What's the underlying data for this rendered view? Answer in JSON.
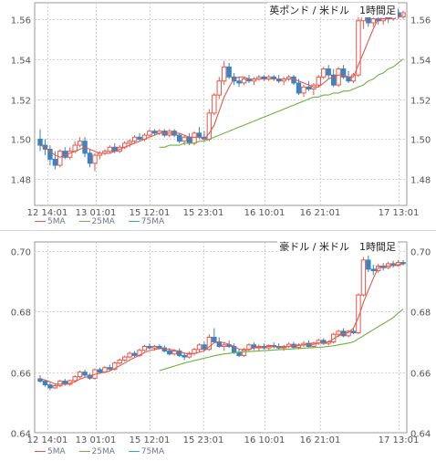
{
  "chart_data": [
    {
      "type": "candlestick",
      "title": "英ポンド / 米ドル　1時間足",
      "ylim": [
        1.467,
        1.568
      ],
      "y_ticks": [
        "1.56",
        "1.54",
        "1.52",
        "1.50",
        "1.48"
      ],
      "x_ticks": [
        "12 14:01",
        "13 01:01",
        "15 12:01",
        "15 23:01",
        "16 10:01",
        "16 21:01",
        "17 13:01"
      ],
      "legend": [
        "5MA",
        "25MA",
        "75MA"
      ],
      "colors": {
        "up": "#e8574a",
        "down": "#3c83c2",
        "ma5": "#e05a4a",
        "ma25": "#6cb23e",
        "ma75": "#3aa3d6",
        "grid": "#d2d2d2"
      },
      "candles": [
        [
          1.5,
          1.505,
          1.494,
          1.497
        ],
        [
          1.497,
          1.5,
          1.492,
          1.495
        ],
        [
          1.495,
          1.497,
          1.487,
          1.49
        ],
        [
          1.49,
          1.494,
          1.485,
          1.487
        ],
        [
          1.487,
          1.495,
          1.486,
          1.494
        ],
        [
          1.494,
          1.496,
          1.49,
          1.491
        ],
        [
          1.491,
          1.496,
          1.49,
          1.494
        ],
        [
          1.494,
          1.499,
          1.493,
          1.497
        ],
        [
          1.497,
          1.501,
          1.496,
          1.499
        ],
        [
          1.499,
          1.501,
          1.491,
          1.493
        ],
        [
          1.493,
          1.495,
          1.486,
          1.488
        ],
        [
          1.488,
          1.493,
          1.484,
          1.492
        ],
        [
          1.492,
          1.494,
          1.49,
          1.493
        ],
        [
          1.493,
          1.495,
          1.492,
          1.494
        ],
        [
          1.494,
          1.497,
          1.493,
          1.496
        ],
        [
          1.496,
          1.498,
          1.493,
          1.494
        ],
        [
          1.494,
          1.497,
          1.493,
          1.496
        ],
        [
          1.496,
          1.499,
          1.495,
          1.498
        ],
        [
          1.498,
          1.5,
          1.496,
          1.499
        ],
        [
          1.499,
          1.502,
          1.498,
          1.501
        ],
        [
          1.501,
          1.503,
          1.499,
          1.5
        ],
        [
          1.5,
          1.503,
          1.499,
          1.502
        ],
        [
          1.502,
          1.505,
          1.501,
          1.504
        ],
        [
          1.504,
          1.505,
          1.502,
          1.503
        ],
        [
          1.503,
          1.505,
          1.502,
          1.504
        ],
        [
          1.504,
          1.505,
          1.501,
          1.502
        ],
        [
          1.502,
          1.505,
          1.501,
          1.504
        ],
        [
          1.504,
          1.505,
          1.501,
          1.502
        ],
        [
          1.502,
          1.503,
          1.498,
          1.499
        ],
        [
          1.499,
          1.502,
          1.497,
          1.501
        ],
        [
          1.501,
          1.503,
          1.497,
          1.498
        ],
        [
          1.498,
          1.504,
          1.497,
          1.503
        ],
        [
          1.503,
          1.506,
          1.5,
          1.501
        ],
        [
          1.501,
          1.504,
          1.499,
          1.5
        ],
        [
          1.5,
          1.515,
          1.499,
          1.513
        ],
        [
          1.513,
          1.523,
          1.512,
          1.522
        ],
        [
          1.522,
          1.531,
          1.52,
          1.529
        ],
        [
          1.529,
          1.539,
          1.527,
          1.536
        ],
        [
          1.536,
          1.538,
          1.53,
          1.531
        ],
        [
          1.531,
          1.533,
          1.527,
          1.529
        ],
        [
          1.529,
          1.531,
          1.526,
          1.528
        ],
        [
          1.528,
          1.531,
          1.527,
          1.53
        ],
        [
          1.53,
          1.532,
          1.528,
          1.529
        ],
        [
          1.529,
          1.531,
          1.527,
          1.53
        ],
        [
          1.53,
          1.532,
          1.529,
          1.531
        ],
        [
          1.531,
          1.532,
          1.529,
          1.53
        ],
        [
          1.53,
          1.532,
          1.529,
          1.531
        ],
        [
          1.531,
          1.532,
          1.529,
          1.53
        ],
        [
          1.53,
          1.532,
          1.528,
          1.529
        ],
        [
          1.529,
          1.531,
          1.527,
          1.53
        ],
        [
          1.53,
          1.532,
          1.529,
          1.531
        ],
        [
          1.531,
          1.532,
          1.527,
          1.528
        ],
        [
          1.528,
          1.53,
          1.522,
          1.523
        ],
        [
          1.523,
          1.527,
          1.521,
          1.526
        ],
        [
          1.526,
          1.529,
          1.524,
          1.525
        ],
        [
          1.525,
          1.528,
          1.522,
          1.527
        ],
        [
          1.527,
          1.532,
          1.526,
          1.531
        ],
        [
          1.531,
          1.536,
          1.53,
          1.535
        ],
        [
          1.535,
          1.537,
          1.53,
          1.532
        ],
        [
          1.532,
          1.535,
          1.526,
          1.527
        ],
        [
          1.527,
          1.536,
          1.526,
          1.535
        ],
        [
          1.535,
          1.537,
          1.53,
          1.531
        ],
        [
          1.531,
          1.534,
          1.528,
          1.529
        ],
        [
          1.529,
          1.533,
          1.528,
          1.532
        ],
        [
          1.532,
          1.561,
          1.531,
          1.559
        ],
        [
          1.559,
          1.566,
          1.555,
          1.564
        ],
        [
          1.564,
          1.566,
          1.556,
          1.558
        ],
        [
          1.558,
          1.562,
          1.556,
          1.56
        ],
        [
          1.56,
          1.563,
          1.557,
          1.559
        ],
        [
          1.559,
          1.562,
          1.557,
          1.561
        ],
        [
          1.561,
          1.563,
          1.558,
          1.56
        ],
        [
          1.56,
          1.564,
          1.559,
          1.563
        ],
        [
          1.563,
          1.565,
          1.56,
          1.561
        ],
        [
          1.561,
          1.564,
          1.56,
          1.563
        ]
      ],
      "ma5": [
        1.497,
        1.496,
        1.494,
        1.492,
        1.491,
        1.492,
        1.493,
        1.494,
        1.495,
        1.496,
        1.495,
        1.494,
        1.493,
        1.493,
        1.493,
        1.494,
        1.495,
        1.496,
        1.497,
        1.498,
        1.499,
        1.5,
        1.501,
        1.502,
        1.503,
        1.503,
        1.503,
        1.503,
        1.503,
        1.502,
        1.501,
        1.501,
        1.501,
        1.5,
        1.503,
        1.507,
        1.514,
        1.521,
        1.526,
        1.53,
        1.531,
        1.531,
        1.53,
        1.53,
        1.53,
        1.53,
        1.53,
        1.53,
        1.53,
        1.53,
        1.53,
        1.53,
        1.529,
        1.528,
        1.527,
        1.526,
        1.526,
        1.528,
        1.53,
        1.531,
        1.532,
        1.532,
        1.531,
        1.531,
        1.537,
        1.543,
        1.549,
        1.555,
        1.56,
        1.56,
        1.56,
        1.561,
        1.561,
        1.562
      ],
      "ma25": [
        null,
        null,
        null,
        null,
        null,
        null,
        null,
        null,
        null,
        null,
        null,
        null,
        null,
        null,
        null,
        null,
        null,
        null,
        null,
        null,
        null,
        null,
        null,
        null,
        1.496,
        1.496,
        1.497,
        1.497,
        1.497,
        1.498,
        1.498,
        1.498,
        1.499,
        1.499,
        1.5,
        1.501,
        1.502,
        1.503,
        1.504,
        1.505,
        1.506,
        1.507,
        1.508,
        1.509,
        1.51,
        1.511,
        1.512,
        1.513,
        1.514,
        1.515,
        1.516,
        1.517,
        1.518,
        1.519,
        1.52,
        1.521,
        1.521,
        1.522,
        1.522,
        1.523,
        1.523,
        1.524,
        1.524,
        1.525,
        1.526,
        1.527,
        1.529,
        1.53,
        1.532,
        1.533,
        1.535,
        1.536,
        1.538,
        1.54
      ]
    },
    {
      "type": "candlestick",
      "title": "豪ドル / 米ドル　1時間足",
      "ylim": [
        0.64,
        0.703
      ],
      "y_ticks": [
        "0.70",
        "0.68",
        "0.66",
        "0.64"
      ],
      "x_ticks": [
        "12 14:01",
        "13 01:01",
        "15 12:01",
        "15 23:01",
        "16 10:01",
        "16 21:01",
        "17 13:01"
      ],
      "legend": [
        "5MA",
        "25MA",
        "75MA"
      ],
      "colors": {
        "up": "#e8574a",
        "down": "#3c83c2",
        "ma5": "#e05a4a",
        "ma25": "#6cb23e",
        "ma75": "#3aa3d6",
        "grid": "#d2d2d2"
      },
      "candles": [
        [
          0.6578,
          0.659,
          0.6565,
          0.657
        ],
        [
          0.657,
          0.6575,
          0.6552,
          0.6558
        ],
        [
          0.6558,
          0.6565,
          0.654,
          0.6548
        ],
        [
          0.6548,
          0.656,
          0.6545,
          0.6555
        ],
        [
          0.6555,
          0.6575,
          0.655,
          0.657
        ],
        [
          0.657,
          0.6578,
          0.6555,
          0.656
        ],
        [
          0.656,
          0.6575,
          0.6555,
          0.6572
        ],
        [
          0.6572,
          0.659,
          0.6565,
          0.6585
        ],
        [
          0.6585,
          0.6605,
          0.658,
          0.66
        ],
        [
          0.66,
          0.6608,
          0.6585,
          0.659
        ],
        [
          0.659,
          0.6595,
          0.6575,
          0.658
        ],
        [
          0.658,
          0.6612,
          0.6575,
          0.6608
        ],
        [
          0.6608,
          0.6615,
          0.6595,
          0.66
        ],
        [
          0.66,
          0.662,
          0.6598,
          0.6615
        ],
        [
          0.6615,
          0.6625,
          0.6605,
          0.661
        ],
        [
          0.661,
          0.6635,
          0.6605,
          0.663
        ],
        [
          0.663,
          0.6645,
          0.6625,
          0.664
        ],
        [
          0.664,
          0.6655,
          0.6635,
          0.665
        ],
        [
          0.665,
          0.6668,
          0.6645,
          0.6662
        ],
        [
          0.6662,
          0.667,
          0.665,
          0.6655
        ],
        [
          0.6655,
          0.6678,
          0.665,
          0.6672
        ],
        [
          0.6672,
          0.669,
          0.6668,
          0.6685
        ],
        [
          0.6685,
          0.6695,
          0.6675,
          0.668
        ],
        [
          0.668,
          0.669,
          0.667,
          0.6685
        ],
        [
          0.6685,
          0.6692,
          0.6675,
          0.668
        ],
        [
          0.668,
          0.6688,
          0.6665,
          0.667
        ],
        [
          0.667,
          0.668,
          0.6655,
          0.666
        ],
        [
          0.666,
          0.6675,
          0.6655,
          0.667
        ],
        [
          0.667,
          0.6678,
          0.665,
          0.6655
        ],
        [
          0.6655,
          0.6665,
          0.664,
          0.665
        ],
        [
          0.665,
          0.6668,
          0.6645,
          0.6662
        ],
        [
          0.6662,
          0.668,
          0.6655,
          0.6675
        ],
        [
          0.6675,
          0.6695,
          0.6668,
          0.669
        ],
        [
          0.669,
          0.67,
          0.667,
          0.6675
        ],
        [
          0.6675,
          0.6725,
          0.667,
          0.6715
        ],
        [
          0.6715,
          0.6745,
          0.6705,
          0.67
        ],
        [
          0.67,
          0.6715,
          0.668,
          0.6685
        ],
        [
          0.6685,
          0.67,
          0.667,
          0.669
        ],
        [
          0.669,
          0.6705,
          0.668,
          0.6685
        ],
        [
          0.6685,
          0.6695,
          0.666,
          0.6665
        ],
        [
          0.6665,
          0.6675,
          0.665,
          0.6655
        ],
        [
          0.6655,
          0.668,
          0.665,
          0.6675
        ],
        [
          0.6675,
          0.6695,
          0.667,
          0.669
        ],
        [
          0.669,
          0.6698,
          0.6672,
          0.668
        ],
        [
          0.668,
          0.6692,
          0.667,
          0.6685
        ],
        [
          0.6685,
          0.6695,
          0.6675,
          0.668
        ],
        [
          0.668,
          0.6692,
          0.6672,
          0.6688
        ],
        [
          0.6688,
          0.6698,
          0.6678,
          0.6685
        ],
        [
          0.6685,
          0.6695,
          0.6675,
          0.668
        ],
        [
          0.668,
          0.669,
          0.667,
          0.6685
        ],
        [
          0.6685,
          0.6698,
          0.668,
          0.6692
        ],
        [
          0.6692,
          0.67,
          0.6678,
          0.6682
        ],
        [
          0.6682,
          0.6695,
          0.6675,
          0.669
        ],
        [
          0.669,
          0.6702,
          0.6683,
          0.6695
        ],
        [
          0.6695,
          0.6705,
          0.668,
          0.6685
        ],
        [
          0.6685,
          0.67,
          0.668,
          0.6696
        ],
        [
          0.6696,
          0.671,
          0.669,
          0.6705
        ],
        [
          0.6705,
          0.6712,
          0.669,
          0.6695
        ],
        [
          0.6695,
          0.6705,
          0.6688,
          0.67
        ],
        [
          0.67,
          0.673,
          0.6695,
          0.6725
        ],
        [
          0.6725,
          0.674,
          0.6715,
          0.6735
        ],
        [
          0.6735,
          0.6745,
          0.6715,
          0.672
        ],
        [
          0.672,
          0.674,
          0.6715,
          0.6735
        ],
        [
          0.6735,
          0.6745,
          0.6725,
          0.673
        ],
        [
          0.673,
          0.686,
          0.6725,
          0.6855
        ],
        [
          0.6855,
          0.698,
          0.685,
          0.697
        ],
        [
          0.697,
          0.6985,
          0.693,
          0.694
        ],
        [
          0.694,
          0.6955,
          0.692,
          0.6935
        ],
        [
          0.6935,
          0.6958,
          0.6928,
          0.695
        ],
        [
          0.695,
          0.696,
          0.6935,
          0.6945
        ],
        [
          0.6945,
          0.6965,
          0.694,
          0.6958
        ],
        [
          0.6958,
          0.6968,
          0.6945,
          0.6952
        ],
        [
          0.6952,
          0.697,
          0.6948,
          0.6962
        ],
        [
          0.6962,
          0.697,
          0.6952,
          0.6958
        ]
      ],
      "ma5": [
        0.6578,
        0.6574,
        0.6568,
        0.6561,
        0.656,
        0.6561,
        0.6563,
        0.6568,
        0.6577,
        0.6583,
        0.6586,
        0.6593,
        0.6596,
        0.66,
        0.6604,
        0.6612,
        0.6621,
        0.663,
        0.664,
        0.6648,
        0.6656,
        0.6665,
        0.6671,
        0.6675,
        0.6678,
        0.6678,
        0.6675,
        0.6673,
        0.6668,
        0.6663,
        0.6659,
        0.6662,
        0.6666,
        0.667,
        0.6684,
        0.6697,
        0.67,
        0.6697,
        0.6692,
        0.6685,
        0.6676,
        0.6672,
        0.6675,
        0.668,
        0.6683,
        0.6684,
        0.6685,
        0.6684,
        0.6683,
        0.6682,
        0.6685,
        0.6687,
        0.6688,
        0.669,
        0.669,
        0.6692,
        0.6696,
        0.6697,
        0.67,
        0.671,
        0.672,
        0.6726,
        0.6731,
        0.6745,
        0.678,
        0.683,
        0.687,
        0.691,
        0.6945,
        0.695,
        0.695,
        0.6952,
        0.6955,
        0.6957
      ],
      "ma25": [
        null,
        null,
        null,
        null,
        null,
        null,
        null,
        null,
        null,
        null,
        null,
        null,
        null,
        null,
        null,
        null,
        null,
        null,
        null,
        null,
        null,
        null,
        null,
        null,
        0.6605,
        0.661,
        0.6615,
        0.662,
        0.6625,
        0.663,
        0.6634,
        0.6638,
        0.6642,
        0.6646,
        0.665,
        0.6654,
        0.6657,
        0.666,
        0.6662,
        0.6664,
        0.6666,
        0.6667,
        0.6668,
        0.6669,
        0.667,
        0.6671,
        0.6672,
        0.6673,
        0.6674,
        0.6675,
        0.6676,
        0.6677,
        0.6678,
        0.6679,
        0.668,
        0.6681,
        0.6682,
        0.6683,
        0.6685,
        0.6687,
        0.669,
        0.6693,
        0.6696,
        0.67,
        0.671,
        0.672,
        0.673,
        0.674,
        0.675,
        0.676,
        0.677,
        0.678,
        0.6795,
        0.6808
      ]
    }
  ]
}
